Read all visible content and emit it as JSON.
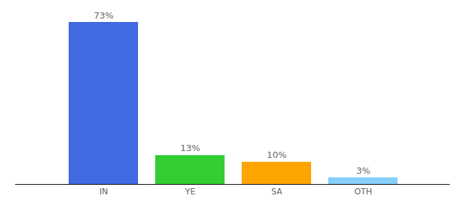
{
  "chart_data": {
    "type": "bar",
    "categories": [
      "IN",
      "YE",
      "SA",
      "OTH"
    ],
    "values": [
      73,
      13,
      10,
      3
    ],
    "value_labels": [
      "73%",
      "13%",
      "10%",
      "3%"
    ],
    "colors": [
      "#4169e1",
      "#32cd32",
      "#ffa500",
      "#87cefa"
    ],
    "ylim": [
      0,
      73
    ],
    "data_labels": true,
    "tick_labels": "x",
    "grid": false
  }
}
